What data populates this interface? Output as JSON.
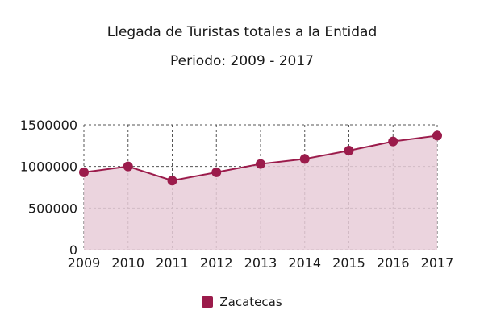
{
  "colors": {
    "series": "#9b1b4b",
    "fill": "#e8cdd8",
    "grid": "#555555",
    "text": "#1a1a1a"
  },
  "chart_data": {
    "type": "area",
    "title": "Llegada de Turistas totales a la Entidad",
    "subtitle": "Periodo: 2009 - 2017",
    "x": [
      "2009",
      "2010",
      "2011",
      "2012",
      "2013",
      "2014",
      "2015",
      "2016",
      "2017"
    ],
    "ylim": [
      0,
      1500000
    ],
    "yticks": [
      "0",
      "500000",
      "1000000",
      "1500000"
    ],
    "grid": true,
    "legend_position": "bottom",
    "series": [
      {
        "name": "Zacatecas",
        "values": [
          930000,
          1000000,
          830000,
          930000,
          1030000,
          1090000,
          1190000,
          1300000,
          1370000
        ]
      }
    ]
  }
}
